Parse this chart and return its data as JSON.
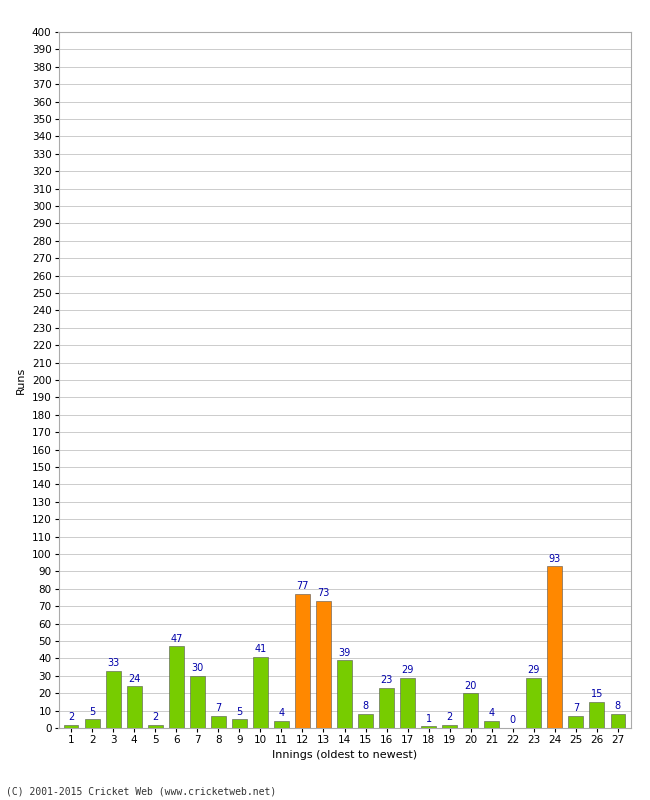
{
  "xlabel": "Innings (oldest to newest)",
  "ylabel": "Runs",
  "values": [
    2,
    5,
    33,
    24,
    2,
    47,
    30,
    7,
    5,
    41,
    4,
    77,
    73,
    39,
    8,
    23,
    29,
    1,
    2,
    20,
    4,
    0,
    29,
    93,
    7,
    15,
    8
  ],
  "colors": [
    "#77cc00",
    "#77cc00",
    "#77cc00",
    "#77cc00",
    "#77cc00",
    "#77cc00",
    "#77cc00",
    "#77cc00",
    "#77cc00",
    "#77cc00",
    "#77cc00",
    "#ff8800",
    "#ff8800",
    "#77cc00",
    "#77cc00",
    "#77cc00",
    "#77cc00",
    "#77cc00",
    "#77cc00",
    "#77cc00",
    "#77cc00",
    "#77cc00",
    "#77cc00",
    "#ff8800",
    "#77cc00",
    "#77cc00",
    "#77cc00"
  ],
  "labels": [
    "1",
    "2",
    "3",
    "4",
    "5",
    "6",
    "7",
    "8",
    "9",
    "10",
    "11",
    "12",
    "13",
    "14",
    "15",
    "16",
    "17",
    "18",
    "19",
    "20",
    "21",
    "22",
    "23",
    "24",
    "25",
    "26",
    "27"
  ],
  "ylim": [
    0,
    400
  ],
  "bg_color": "#ffffff",
  "grid_color": "#cccccc",
  "bar_edge_color": "#555555",
  "value_label_color": "#0000aa",
  "value_label_fontsize": 7,
  "axis_label_fontsize": 8,
  "tick_label_fontsize": 7.5,
  "footer": "(C) 2001-2015 Cricket Web (www.cricketweb.net)"
}
